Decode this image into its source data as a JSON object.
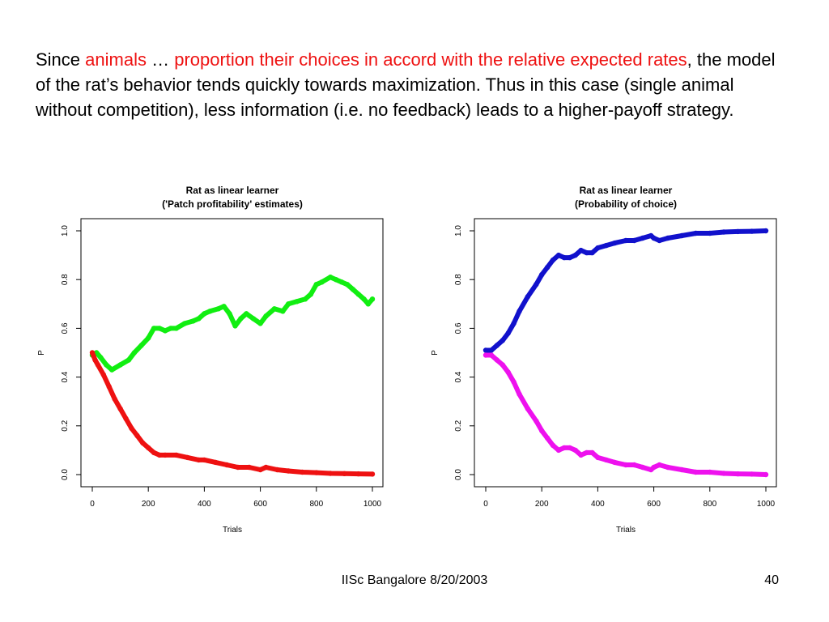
{
  "intro": {
    "s1": "Since ",
    "s2": "animals",
    "s3": " … ",
    "s4": "proportion their choices in accord with the relative expected rates",
    "s5": ", the model of the rat’s behavior tends quickly towards maximization. Thus in this case (single animal without competition), less information (i.e. no feedback) leads to a higher-payoff strategy."
  },
  "colors": {
    "highlight": "#ee1111",
    "green": "#11ee11",
    "red": "#ee1111",
    "blue": "#1111cc",
    "magenta": "#ee11ee"
  },
  "chart_data": [
    {
      "type": "line",
      "title": "Rat as linear learner",
      "subtitle": "('Patch profitability' estimates)",
      "xlabel": "Trials",
      "ylabel": "P",
      "xlim": [
        0,
        1000
      ],
      "ylim": [
        0.0,
        1.0
      ],
      "x_ticks": [
        "0",
        "200",
        "400",
        "600",
        "800",
        "1000"
      ],
      "y_ticks": [
        "0.0",
        "0.2",
        "0.4",
        "0.6",
        "0.8",
        "1.0"
      ],
      "grid": false,
      "legend": "none",
      "series": [
        {
          "color": "#11ee11",
          "x": [
            0,
            15,
            30,
            50,
            70,
            100,
            130,
            150,
            175,
            200,
            220,
            240,
            260,
            280,
            300,
            330,
            360,
            380,
            400,
            420,
            450,
            470,
            490,
            510,
            530,
            550,
            575,
            600,
            620,
            650,
            680,
            700,
            730,
            760,
            780,
            800,
            820,
            850,
            870,
            890,
            910,
            930,
            950,
            970,
            985,
            1000
          ],
          "values": [
            0.49,
            0.5,
            0.48,
            0.45,
            0.43,
            0.45,
            0.47,
            0.5,
            0.53,
            0.56,
            0.6,
            0.6,
            0.59,
            0.6,
            0.6,
            0.62,
            0.63,
            0.64,
            0.66,
            0.67,
            0.68,
            0.69,
            0.66,
            0.61,
            0.64,
            0.66,
            0.64,
            0.62,
            0.65,
            0.68,
            0.67,
            0.7,
            0.71,
            0.72,
            0.74,
            0.78,
            0.79,
            0.81,
            0.8,
            0.79,
            0.78,
            0.76,
            0.74,
            0.72,
            0.7,
            0.72
          ]
        },
        {
          "color": "#ee1111",
          "x": [
            0,
            10,
            20,
            40,
            60,
            80,
            100,
            120,
            140,
            160,
            180,
            200,
            220,
            240,
            260,
            300,
            340,
            380,
            400,
            440,
            480,
            520,
            560,
            600,
            620,
            660,
            700,
            750,
            800,
            850,
            900,
            950,
            1000
          ],
          "values": [
            0.5,
            0.47,
            0.45,
            0.41,
            0.36,
            0.31,
            0.27,
            0.23,
            0.19,
            0.16,
            0.13,
            0.11,
            0.09,
            0.08,
            0.08,
            0.08,
            0.07,
            0.06,
            0.06,
            0.05,
            0.04,
            0.03,
            0.03,
            0.02,
            0.03,
            0.02,
            0.015,
            0.01,
            0.008,
            0.005,
            0.004,
            0.003,
            0.002
          ]
        }
      ]
    },
    {
      "type": "line",
      "title": "Rat as linear learner",
      "subtitle": "(Probability of choice)",
      "xlabel": "Trials",
      "ylabel": "P",
      "xlim": [
        0,
        1000
      ],
      "ylim": [
        0.0,
        1.0
      ],
      "x_ticks": [
        "0",
        "200",
        "400",
        "600",
        "800",
        "1000"
      ],
      "y_ticks": [
        "0.0",
        "0.2",
        "0.4",
        "0.6",
        "0.8",
        "1.0"
      ],
      "grid": false,
      "legend": "none",
      "series": [
        {
          "color": "#1111cc",
          "x": [
            0,
            20,
            40,
            60,
            80,
            100,
            120,
            150,
            180,
            200,
            220,
            240,
            260,
            280,
            300,
            320,
            340,
            360,
            380,
            400,
            430,
            460,
            500,
            530,
            560,
            590,
            600,
            620,
            650,
            700,
            750,
            800,
            850,
            900,
            950,
            1000
          ],
          "values": [
            0.51,
            0.51,
            0.53,
            0.55,
            0.58,
            0.62,
            0.67,
            0.73,
            0.78,
            0.82,
            0.85,
            0.88,
            0.9,
            0.89,
            0.89,
            0.9,
            0.92,
            0.91,
            0.91,
            0.93,
            0.94,
            0.95,
            0.96,
            0.96,
            0.97,
            0.98,
            0.97,
            0.96,
            0.97,
            0.98,
            0.99,
            0.99,
            0.995,
            0.997,
            0.998,
            1.0
          ]
        },
        {
          "color": "#ee11ee",
          "x": [
            0,
            20,
            40,
            60,
            80,
            100,
            120,
            150,
            180,
            200,
            220,
            240,
            260,
            280,
            300,
            320,
            340,
            360,
            380,
            400,
            430,
            460,
            500,
            530,
            560,
            590,
            600,
            620,
            650,
            700,
            750,
            800,
            850,
            900,
            950,
            1000
          ],
          "values": [
            0.49,
            0.49,
            0.47,
            0.45,
            0.42,
            0.38,
            0.33,
            0.27,
            0.22,
            0.18,
            0.15,
            0.12,
            0.1,
            0.11,
            0.11,
            0.1,
            0.08,
            0.09,
            0.09,
            0.07,
            0.06,
            0.05,
            0.04,
            0.04,
            0.03,
            0.02,
            0.03,
            0.04,
            0.03,
            0.02,
            0.01,
            0.01,
            0.005,
            0.003,
            0.002,
            0.0
          ]
        }
      ]
    }
  ],
  "footer": {
    "center": "IISc Bangalore 8/20/2003",
    "page": "40"
  }
}
